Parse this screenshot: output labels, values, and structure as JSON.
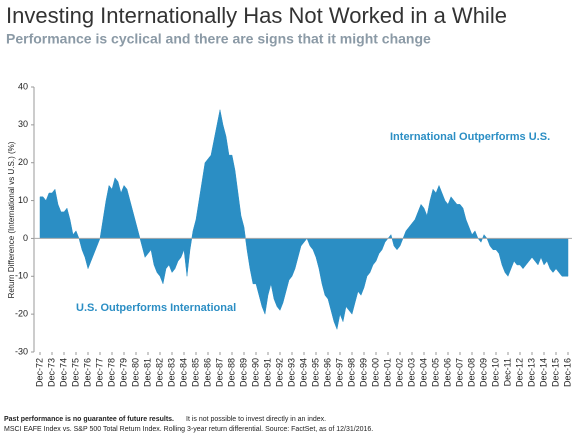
{
  "chart_data": {
    "type": "area",
    "title": "Investing Internationally Has Not Worked in a While",
    "subtitle": "Performance is cyclical and there are signs that it might change",
    "y_label": "Return Difference (International vs U.S.) (%)",
    "annotations": [
      "International Outperforms U.S.",
      "U.S. Outperforms International"
    ],
    "footnote": [
      "Past performance is no guarantee of future results.",
      "It is not possible to invest directly in an index.",
      "MSCI EAFE Index vs. S&P 500 Total Return Index. Rolling 3-year return differential. Source: FactSet, as of 12/31/2016."
    ],
    "color": "#2b8ec4",
    "ylim": [
      -30,
      40
    ],
    "yticks": [
      40,
      30,
      20,
      10,
      0,
      -10,
      -20,
      -30
    ],
    "categories": [
      "Dec-72",
      null,
      null,
      null,
      "Dec-73",
      null,
      null,
      null,
      "Dec-74",
      null,
      null,
      null,
      "Dec-75",
      null,
      null,
      null,
      "Dec-76",
      null,
      null,
      null,
      "Dec-77",
      null,
      null,
      null,
      "Dec-78",
      null,
      null,
      null,
      "Dec-79",
      null,
      null,
      null,
      "Dec-80",
      null,
      null,
      null,
      "Dec-81",
      null,
      null,
      null,
      "Dec-82",
      null,
      null,
      null,
      "Dec-83",
      null,
      null,
      null,
      "Dec-84",
      null,
      null,
      null,
      "Dec-85",
      null,
      null,
      null,
      "Dec-86",
      null,
      null,
      null,
      "Dec-87",
      null,
      null,
      null,
      "Dec-88",
      null,
      null,
      null,
      "Dec-89",
      null,
      null,
      null,
      "Dec-90",
      null,
      null,
      null,
      "Dec-91",
      null,
      null,
      null,
      "Dec-92",
      null,
      null,
      null,
      "Dec-93",
      null,
      null,
      null,
      "Dec-94",
      null,
      null,
      null,
      "Dec-95",
      null,
      null,
      null,
      "Dec-96",
      null,
      null,
      null,
      "Dec-97",
      null,
      null,
      null,
      "Dec-98",
      null,
      null,
      null,
      "Dec-99",
      null,
      null,
      null,
      "Dec-00",
      null,
      null,
      null,
      "Dec-01",
      null,
      null,
      null,
      "Dec-02",
      null,
      null,
      null,
      "Dec-03",
      null,
      null,
      null,
      "Dec-04",
      null,
      null,
      null,
      "Dec-05",
      null,
      null,
      null,
      "Dec-06",
      null,
      null,
      null,
      "Dec-07",
      null,
      null,
      null,
      "Dec-08",
      null,
      null,
      null,
      "Dec-09",
      null,
      null,
      null,
      "Dec-10",
      null,
      null,
      null,
      "Dec-11",
      null,
      null,
      null,
      "Dec-12",
      null,
      null,
      null,
      "Dec-13",
      null,
      null,
      null,
      "Dec-14",
      null,
      null,
      null,
      "Dec-15",
      null,
      null,
      null,
      "Dec-16"
    ],
    "values": [
      11,
      11,
      10,
      12,
      12,
      13,
      9,
      7,
      7,
      8,
      5,
      1,
      2,
      0,
      -3,
      -5,
      -8,
      -6,
      -4,
      -2,
      0,
      5,
      10,
      14,
      13,
      16,
      15,
      12,
      14,
      13,
      10,
      7,
      4,
      1,
      -2,
      -5,
      -4,
      -3,
      -7,
      -9,
      -10,
      -12,
      -8,
      -7,
      -9,
      -8,
      -6,
      -5,
      -3,
      -10,
      -3,
      2,
      5,
      10,
      15,
      20,
      21,
      22,
      26,
      30,
      34,
      30,
      27,
      22,
      22,
      18,
      12,
      6,
      3,
      -3,
      -8,
      -12,
      -12,
      -15,
      -18,
      -20,
      -15,
      -12,
      -16,
      -18,
      -19,
      -17,
      -14,
      -11,
      -10,
      -8,
      -5,
      -2,
      -1,
      0,
      -2,
      -3,
      -5,
      -8,
      -12,
      -15,
      -16,
      -19,
      -22,
      -24,
      -20,
      -22,
      -18,
      -19,
      -20,
      -17,
      -14,
      -15,
      -13,
      -10,
      -9,
      -7,
      -6,
      -4,
      -3,
      -1,
      0,
      1,
      -2,
      -3,
      -2,
      0,
      2,
      3,
      4,
      5,
      7,
      9,
      8,
      6,
      10,
      13,
      12,
      14,
      12,
      10,
      9,
      11,
      10,
      9,
      9,
      8,
      5,
      3,
      1,
      2,
      0,
      -1,
      1,
      0,
      -2,
      -3,
      -3,
      -4,
      -7,
      -9,
      -10,
      -8,
      -6,
      -7,
      -7,
      -8,
      -7,
      -6,
      -5,
      -6,
      -7,
      -5,
      -7,
      -6,
      -8,
      -9,
      -8,
      -9,
      -10,
      -10,
      -10
    ]
  }
}
